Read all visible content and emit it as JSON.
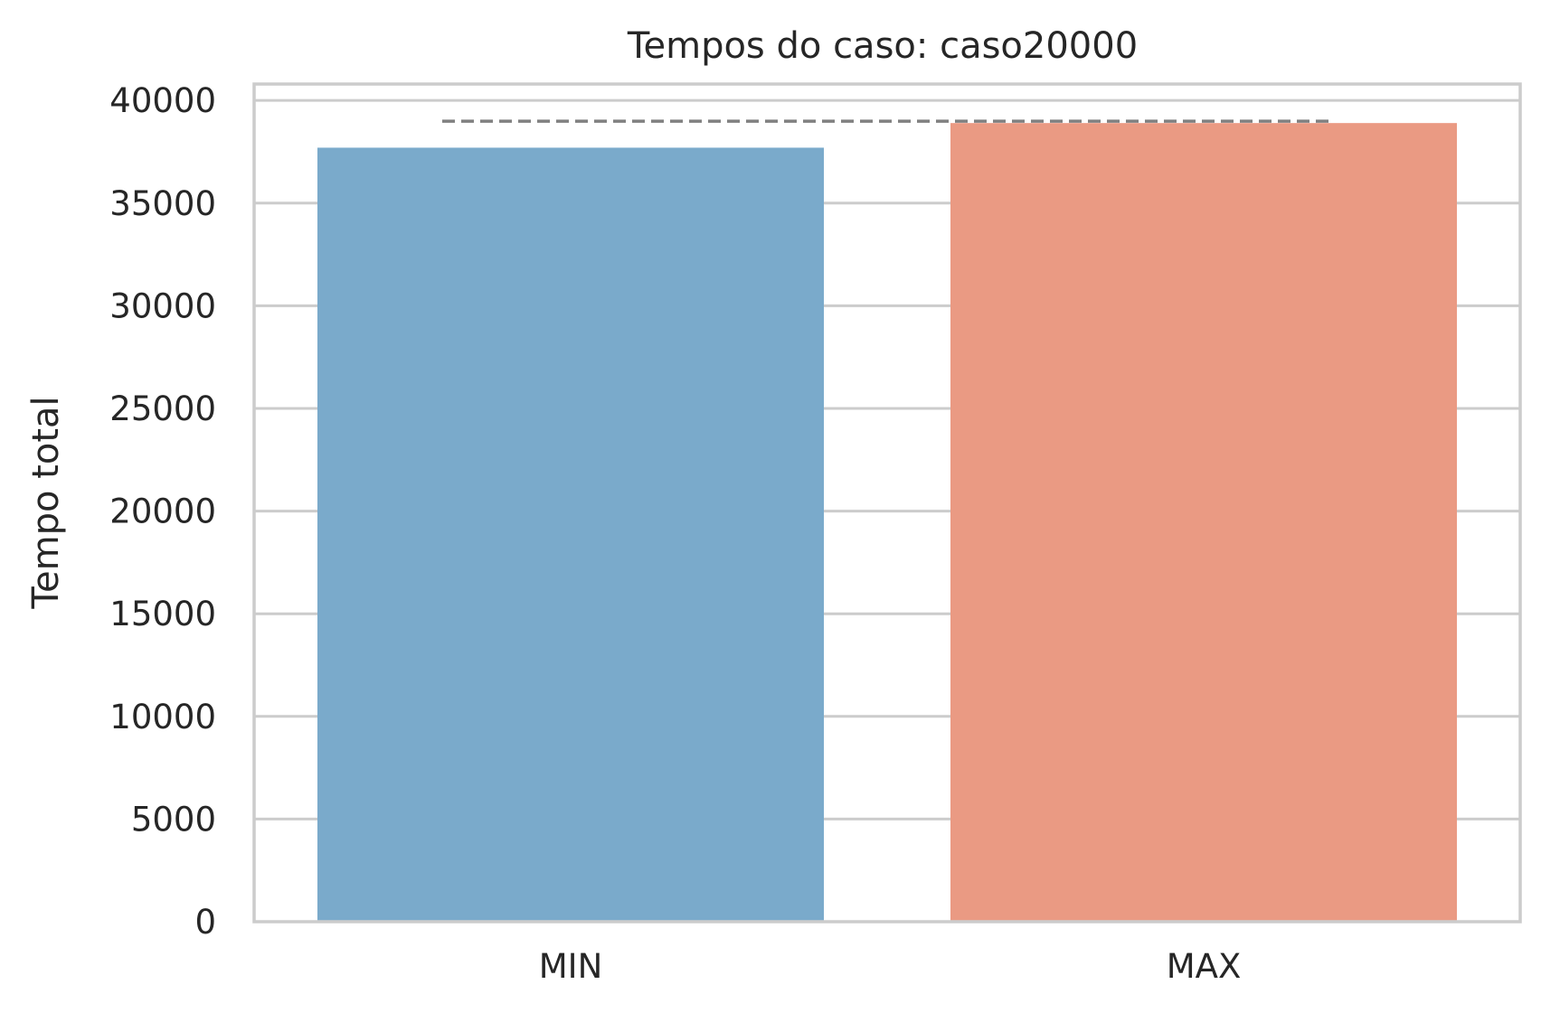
{
  "chart_data": {
    "type": "bar",
    "title": "Tempos do caso: caso20000",
    "xlabel": "",
    "ylabel": "Tempo total",
    "categories": [
      "MIN",
      "MAX"
    ],
    "values": [
      37700,
      38900
    ],
    "ylim": [
      0,
      40800
    ],
    "yticks": [
      0,
      5000,
      10000,
      15000,
      20000,
      25000,
      30000,
      35000,
      40000
    ],
    "ytick_labels": [
      "0",
      "5000",
      "10000",
      "15000",
      "20000",
      "25000",
      "30000",
      "35000",
      "40000"
    ],
    "reference_line": {
      "value": 38900,
      "style": "dashed"
    },
    "grid": "horizontal",
    "colors": {
      "bars": [
        "#7aaacb",
        "#ea9a83"
      ],
      "grid": "#cccccc",
      "frame": "#cccccc",
      "reference_line": "#808080",
      "text": "#262626"
    }
  }
}
